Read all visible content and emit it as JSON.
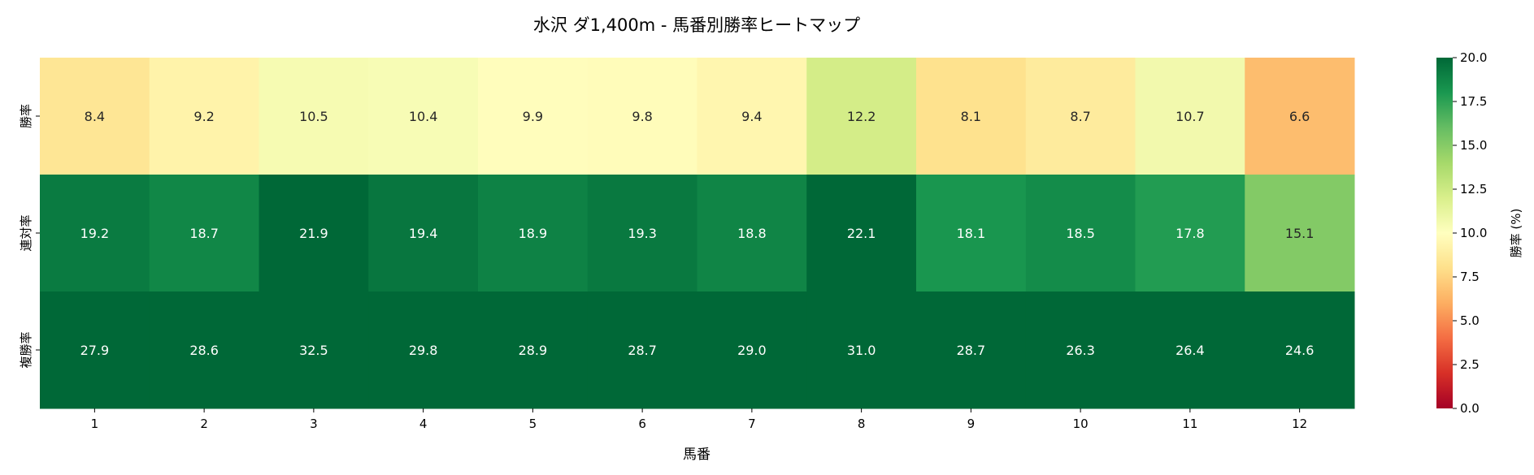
{
  "chart_data": {
    "type": "heatmap",
    "title": "水沢 ダ1,400m - 馬番別勝率ヒートマップ",
    "xlabel": "馬番",
    "ylabel": "",
    "x_categories": [
      "1",
      "2",
      "3",
      "4",
      "5",
      "6",
      "7",
      "8",
      "9",
      "10",
      "11",
      "12"
    ],
    "y_categories": [
      "勝率",
      "連対率",
      "複勝率"
    ],
    "values": [
      [
        8.4,
        9.2,
        10.5,
        10.4,
        9.9,
        9.8,
        9.4,
        12.2,
        8.1,
        8.7,
        10.7,
        6.6
      ],
      [
        19.2,
        18.7,
        21.9,
        19.4,
        18.9,
        19.3,
        18.8,
        22.1,
        18.1,
        18.5,
        17.8,
        15.1
      ],
      [
        27.9,
        28.6,
        32.5,
        29.8,
        28.9,
        28.7,
        29.0,
        31.0,
        28.7,
        26.3,
        26.4,
        24.6
      ]
    ],
    "colormap": "RdYlGn",
    "colorbar": {
      "label": "勝率 (%)",
      "range": [
        0,
        20
      ],
      "ticks": [
        "0.0",
        "2.5",
        "5.0",
        "7.5",
        "10.0",
        "12.5",
        "15.0",
        "17.5",
        "20.0"
      ]
    },
    "annotations": true
  }
}
